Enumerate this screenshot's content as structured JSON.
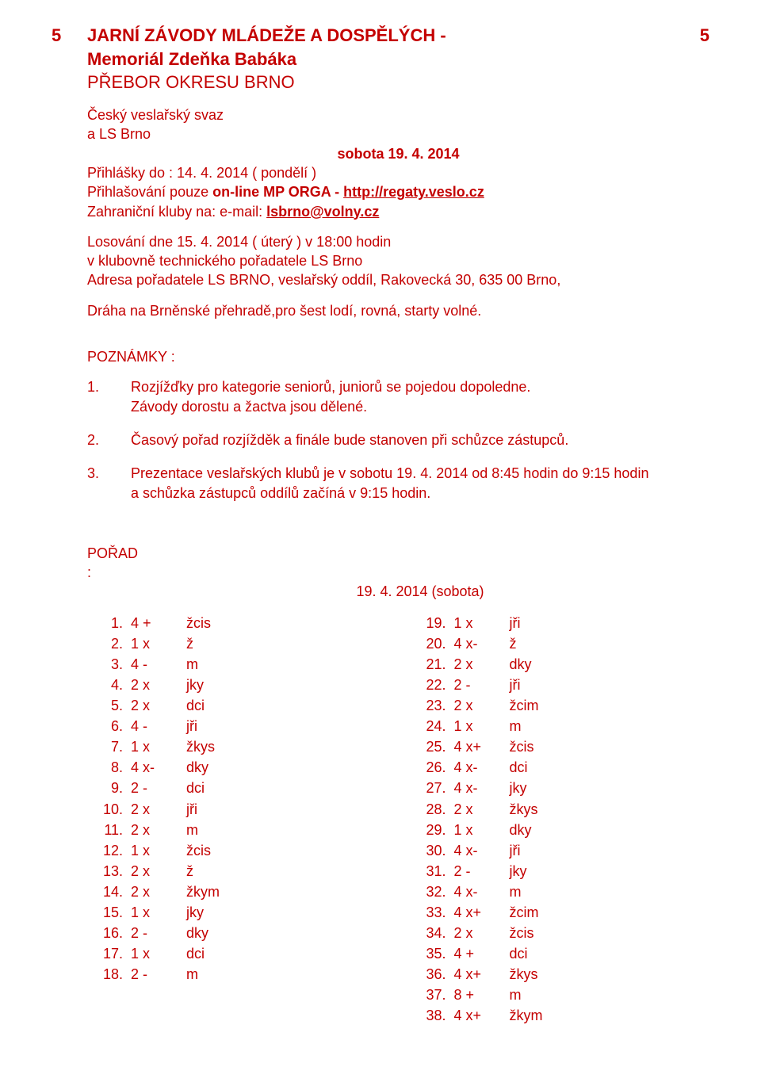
{
  "colors": {
    "text": "#c40000",
    "background": "#ffffff"
  },
  "pageNum": "5",
  "title": {
    "line1": "JARNÍ ZÁVODY MLÁDEŽE A DOSPĚLÝCH -",
    "line2": "Memoriál Zdeňka Babáka",
    "line3": "PŘEBOR OKRESU BRNO"
  },
  "org": {
    "line1": "Český veslařský svaz",
    "line2": "a LS Brno"
  },
  "date_center": "sobota 19. 4. 2014",
  "entries": {
    "label": "Přihlášky do : 14. 4. 2014 ( pondělí )",
    "online_prefix": "Přihlašování pouze ",
    "online_bold": "on-line MP ORGA - ",
    "online_link": "http://regaty.veslo.cz",
    "foreign_prefix": "Zahraniční kluby na: e-mail: ",
    "foreign_link": "lsbrno@volny.cz"
  },
  "draw": {
    "line1": "Losování dne 15. 4. 2014 ( úterý ) v 18:00 hodin",
    "line2": "v klubovně technického pořadatele LS Brno",
    "line3": "Adresa pořadatele LS BRNO, veslařský oddíl, Rakovecká 30,  635 00 Brno,"
  },
  "track": "Dráha na Brněnské přehradě,pro šest lodí, rovná, starty volné.",
  "notes_heading": "POZNÁMKY :",
  "notes": [
    {
      "n": "1.",
      "text_a": "Rozjížďky pro kategorie seniorů, juniorů se pojedou dopoledne.",
      "text_b": "Závody dorostu a žactva jsou dělené."
    },
    {
      "n": "2.",
      "text_a": "Časový pořad rozjížděk a finále  bude stanoven při schůzce zástupců."
    },
    {
      "n": "3.",
      "text_a": "Prezentace veslařských klubů je v sobotu 19. 4. 2014 od 8:45 hodin do 9:15 hodin",
      "text_b": "a schůzka zástupců oddílů  začíná v 9:15 hodin."
    }
  ],
  "porad": {
    "label": "POŘAD :",
    "date": "19. 4. 2014 (sobota)"
  },
  "sched_left": [
    {
      "n": "1.",
      "c": "4 +",
      "d": "žcis"
    },
    {
      "n": "2.",
      "c": "1 x",
      "d": "ž"
    },
    {
      "n": "3.",
      "c": "4 -",
      "d": "m"
    },
    {
      "n": "4.",
      "c": "2 x",
      "d": "jky"
    },
    {
      "n": "5.",
      "c": "2 x",
      "d": "dci"
    },
    {
      "n": "6.",
      "c": "4 -",
      "d": "jři"
    },
    {
      "n": "7.",
      "c": "1 x",
      "d": "žkys"
    },
    {
      "n": "8.",
      "c": "4 x-",
      "d": "dky"
    },
    {
      "n": "9.",
      "c": "2 -",
      "d": "dci"
    },
    {
      "n": "10.",
      "c": "2 x",
      "d": "jři"
    },
    {
      "n": "11.",
      "c": "2 x",
      "d": "m"
    },
    {
      "n": "12.",
      "c": "1 x",
      "d": "žcis"
    },
    {
      "n": "13.",
      "c": "2 x",
      "d": "ž"
    },
    {
      "n": "14.",
      "c": "2 x",
      "d": "žkym"
    },
    {
      "n": "15.",
      "c": "1 x",
      "d": "jky"
    },
    {
      "n": "16.",
      "c": "2 -",
      "d": "dky"
    },
    {
      "n": "17.",
      "c": "1 x",
      "d": "dci"
    },
    {
      "n": "18.",
      "c": "2 -",
      "d": "m"
    }
  ],
  "sched_right": [
    {
      "n": "19.",
      "c": "1 x",
      "d": "jři"
    },
    {
      "n": "20.",
      "c": "4 x-",
      "d": "ž"
    },
    {
      "n": "21.",
      "c": "2 x",
      "d": "dky"
    },
    {
      "n": "22.",
      "c": "2 -",
      "d": "jři"
    },
    {
      "n": "23.",
      "c": "2 x",
      "d": "žcim"
    },
    {
      "n": "24.",
      "c": "1 x",
      "d": "m"
    },
    {
      "n": "25.",
      "c": "4 x+",
      "d": "žcis"
    },
    {
      "n": "26.",
      "c": "4 x-",
      "d": "dci"
    },
    {
      "n": "27.",
      "c": "4 x-",
      "d": "jky"
    },
    {
      "n": "28.",
      "c": "2 x",
      "d": "žkys"
    },
    {
      "n": "29.",
      "c": "1 x",
      "d": "dky"
    },
    {
      "n": "30.",
      "c": "4 x-",
      "d": "jři"
    },
    {
      "n": "31.",
      "c": "2 -",
      "d": "jky"
    },
    {
      "n": "32.",
      "c": "4 x-",
      "d": "m"
    },
    {
      "n": "33.",
      "c": "4 x+",
      "d": "žcim"
    },
    {
      "n": "34.",
      "c": "2 x",
      "d": "žcis"
    },
    {
      "n": "35.",
      "c": "4 +",
      "d": "dci"
    },
    {
      "n": "36.",
      "c": "4 x+",
      "d": "žkys"
    },
    {
      "n": "37.",
      "c": "8 +",
      "d": "m"
    },
    {
      "n": "38.",
      "c": "4 x+",
      "d": "žkym"
    }
  ]
}
